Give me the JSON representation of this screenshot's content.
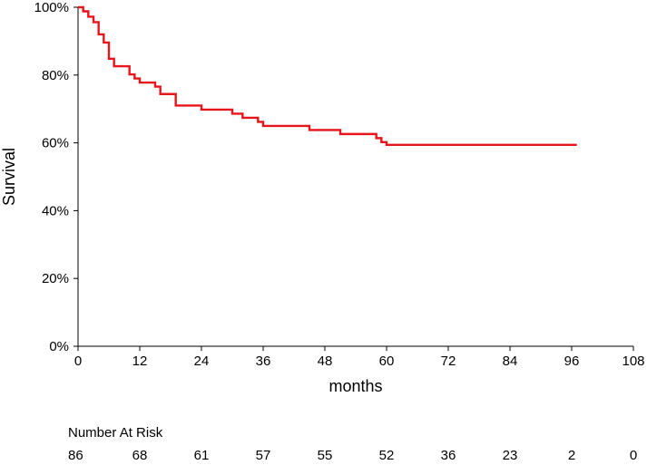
{
  "chart_data": {
    "type": "line",
    "title": "",
    "xlabel": "months",
    "ylabel": "Survival",
    "xlim": [
      0,
      108
    ],
    "ylim": [
      0,
      100
    ],
    "x_ticks": [
      0,
      12,
      24,
      36,
      48,
      60,
      72,
      84,
      96,
      108
    ],
    "x_tick_labels": [
      "0",
      "12",
      "24",
      "36",
      "48",
      "60",
      "72",
      "84",
      "96",
      "108"
    ],
    "y_ticks": [
      0,
      20,
      40,
      60,
      80,
      100
    ],
    "y_tick_labels": [
      "0%",
      "20%",
      "40%",
      "60%",
      "80%",
      "100%"
    ],
    "grid": false,
    "line_color": "#e8141b",
    "series": [
      {
        "step": true,
        "x": [
          0,
          1,
          2,
          3,
          4,
          5,
          6,
          7,
          10,
          11,
          12,
          15,
          16,
          19,
          24,
          30,
          32,
          35,
          36,
          45,
          51,
          58,
          59,
          60,
          97
        ],
        "values": [
          100,
          98.8,
          97.2,
          95.6,
          92.0,
          89.6,
          84.8,
          82.6,
          80.2,
          79.0,
          77.8,
          76.6,
          74.4,
          71.0,
          69.8,
          68.6,
          67.4,
          66.2,
          65.0,
          63.8,
          62.6,
          61.4,
          60.2,
          59.4,
          59.4
        ]
      }
    ],
    "risk_table": {
      "title": "Number At Risk",
      "times": [
        0,
        12,
        24,
        36,
        48,
        60,
        72,
        84,
        96,
        108
      ],
      "counts": [
        "86",
        "68",
        "61",
        "57",
        "55",
        "52",
        "36",
        "23",
        "2",
        "0"
      ]
    }
  }
}
